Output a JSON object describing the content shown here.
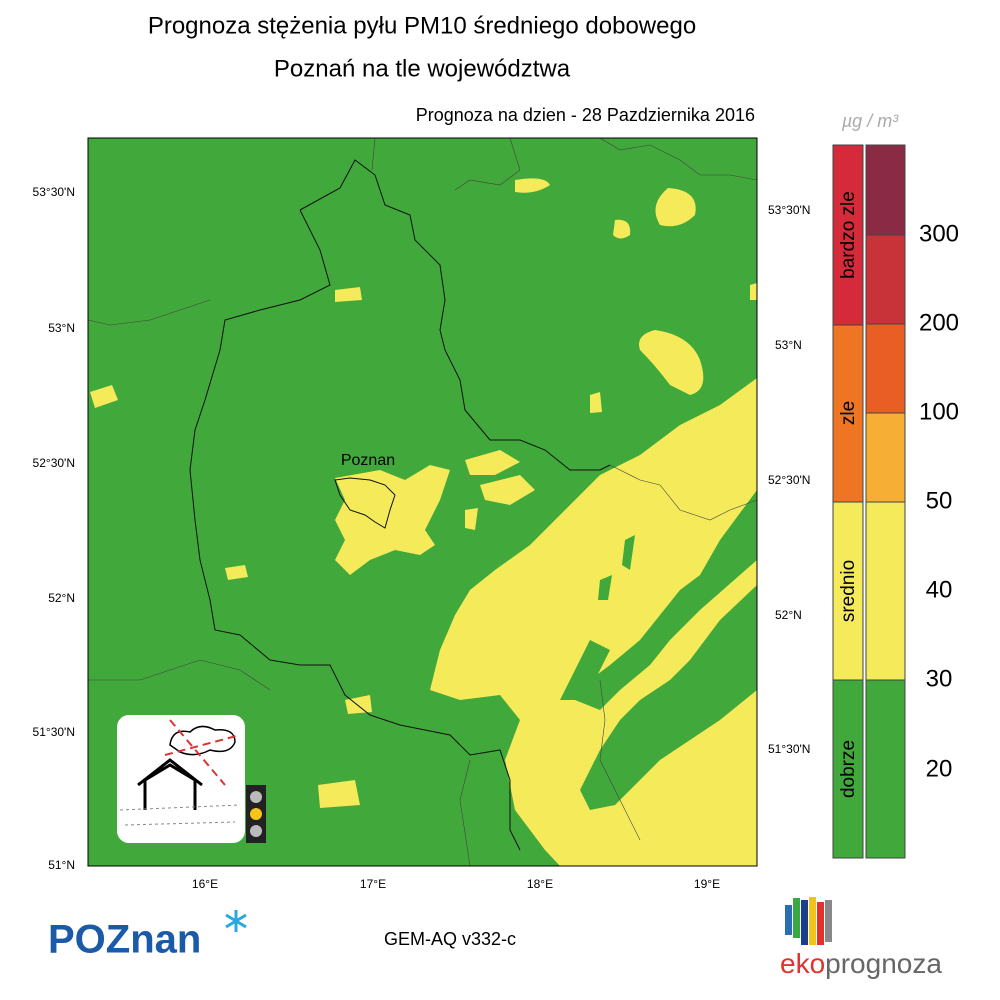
{
  "header": {
    "title": "Prognoza stężenia pyłu PM10 średniego dobowego",
    "subtitle": "Poznań na tle województwa",
    "forecast_date": "Prognoza na dzien -  28 Pazdziernika 2016"
  },
  "map": {
    "city_label": "Poznan",
    "lat_labels_left": [
      "53°30'N",
      "53°N",
      "52°30'N",
      "52°N",
      "51°30'N",
      "51°N"
    ],
    "lat_labels_right": [
      "53°30'N",
      "53°N",
      "52°30'N",
      "52°N",
      "51°30'N"
    ],
    "lon_labels": [
      "16°E",
      "17°E",
      "18°E",
      "19°E"
    ]
  },
  "legend": {
    "unit": "µg / m³",
    "categories": [
      "bardzo zle",
      "zle",
      "srednio",
      "dobrze"
    ],
    "levels": [
      "300",
      "200",
      "100",
      "50",
      "40",
      "30",
      "20"
    ]
  },
  "footer": {
    "logo_left": "POZnan",
    "model": "GEM-AQ v332-c",
    "logo_right_a": "eko",
    "logo_right_b": "prognoza"
  }
}
